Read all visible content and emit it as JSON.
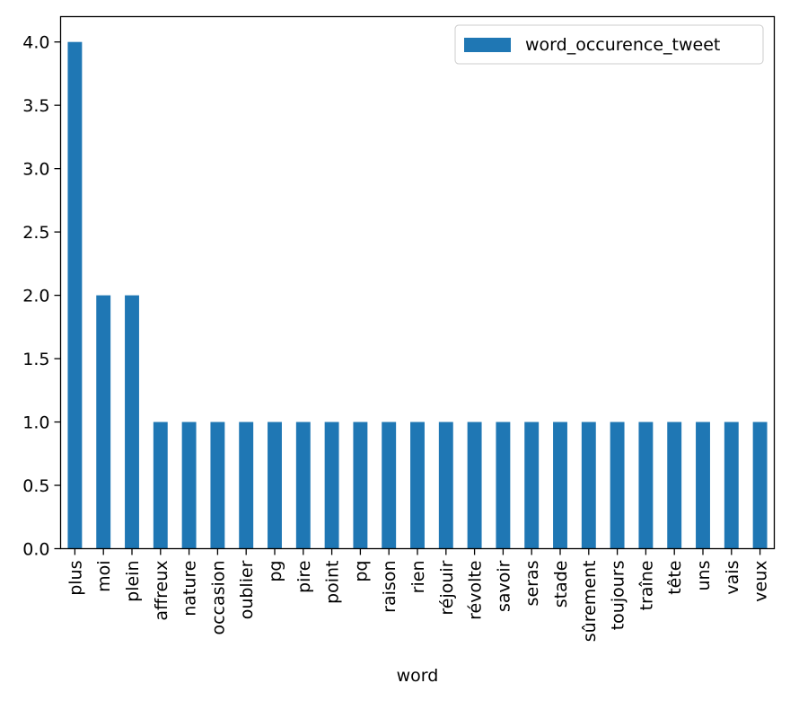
{
  "chart_data": {
    "type": "bar",
    "title": "",
    "xlabel": "word",
    "ylabel": "",
    "categories": [
      "plus",
      "moi",
      "plein",
      "affreux",
      "nature",
      "occasion",
      "oublier",
      "pg",
      "pire",
      "point",
      "pq",
      "raison",
      "rien",
      "réjouir",
      "révolte",
      "savoir",
      "seras",
      "stade",
      "sûrement",
      "toujours",
      "traîne",
      "tête",
      "uns",
      "vais",
      "veux"
    ],
    "series": [
      {
        "name": "word_occurence_tweet",
        "color": "#1f77b4",
        "values": [
          4,
          2,
          2,
          1,
          1,
          1,
          1,
          1,
          1,
          1,
          1,
          1,
          1,
          1,
          1,
          1,
          1,
          1,
          1,
          1,
          1,
          1,
          1,
          1,
          1
        ]
      }
    ],
    "ylim": [
      0,
      4.2
    ],
    "yticks": [
      "0.0",
      "0.5",
      "1.0",
      "1.5",
      "2.0",
      "2.5",
      "3.0",
      "3.5",
      "4.0"
    ],
    "grid": false,
    "legend_position": "top-right"
  }
}
